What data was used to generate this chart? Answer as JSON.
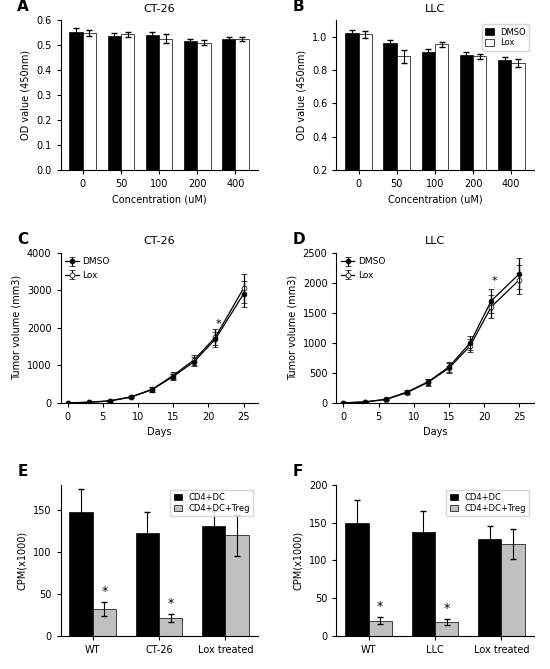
{
  "panel_A": {
    "title": "CT-26",
    "xlabel": "Concentration (uM)",
    "ylabel": "OD value (450nm)",
    "concentrations": [
      0,
      50,
      100,
      200,
      400
    ],
    "dmso_values": [
      0.554,
      0.538,
      0.54,
      0.515,
      0.523
    ],
    "lox_values": [
      0.55,
      0.543,
      0.526,
      0.51,
      0.524
    ],
    "dmso_err": [
      0.015,
      0.01,
      0.012,
      0.008,
      0.01
    ],
    "lox_err": [
      0.012,
      0.01,
      0.018,
      0.01,
      0.008
    ],
    "ylim": [
      0.0,
      0.6
    ],
    "yticks": [
      0.0,
      0.1,
      0.2,
      0.3,
      0.4,
      0.5,
      0.6
    ]
  },
  "panel_B": {
    "title": "LLC",
    "xlabel": "Concentration (uM)",
    "ylabel": "OD value (450nm)",
    "concentrations": [
      0,
      50,
      100,
      200,
      400
    ],
    "dmso_values": [
      1.02,
      0.965,
      0.91,
      0.888,
      0.858
    ],
    "lox_values": [
      1.015,
      0.882,
      0.955,
      0.882,
      0.842
    ],
    "dmso_err": [
      0.02,
      0.018,
      0.015,
      0.018,
      0.02
    ],
    "lox_err": [
      0.02,
      0.04,
      0.015,
      0.015,
      0.025
    ],
    "ylim": [
      0.2,
      1.1
    ],
    "yticks": [
      0.2,
      0.4,
      0.6,
      0.8,
      1.0
    ]
  },
  "panel_C": {
    "title": "CT-26",
    "xlabel": "Days",
    "ylabel": "Tumor volume (mm3)",
    "days": [
      0,
      3,
      6,
      9,
      12,
      15,
      18,
      21,
      25
    ],
    "dmso_values": [
      0,
      15,
      50,
      150,
      350,
      700,
      1100,
      1700,
      2900
    ],
    "lox_values": [
      0,
      15,
      55,
      160,
      360,
      730,
      1150,
      1750,
      3050
    ],
    "dmso_err": [
      0,
      5,
      15,
      30,
      60,
      80,
      120,
      200,
      350
    ],
    "lox_err": [
      0,
      5,
      15,
      30,
      60,
      90,
      130,
      220,
      380
    ],
    "ylim": [
      0,
      4000
    ],
    "yticks": [
      0,
      1000,
      2000,
      3000,
      4000
    ],
    "asterisk_day_idx": 7
  },
  "panel_D": {
    "title": "LLC",
    "xlabel": "Days",
    "ylabel": "Tumor volume (mm3)",
    "days": [
      0,
      3,
      6,
      9,
      12,
      15,
      18,
      21,
      25
    ],
    "dmso_values": [
      0,
      15,
      60,
      180,
      350,
      600,
      1000,
      1700,
      2150
    ],
    "lox_values": [
      0,
      15,
      55,
      170,
      340,
      580,
      950,
      1600,
      2050
    ],
    "dmso_err": [
      0,
      5,
      15,
      30,
      55,
      80,
      120,
      200,
      260
    ],
    "lox_err": [
      0,
      5,
      15,
      30,
      55,
      80,
      110,
      190,
      240
    ],
    "ylim": [
      0,
      2500
    ],
    "yticks": [
      0,
      500,
      1000,
      1500,
      2000,
      2500
    ],
    "asterisk_day_idx": 7
  },
  "panel_E": {
    "xlabel_groups": [
      "WT",
      "CT-26",
      "Lox treated"
    ],
    "cd4dc_values": [
      148,
      123,
      131
    ],
    "cd4dctreg_values": [
      32,
      21,
      120
    ],
    "cd4dc_err": [
      28,
      25,
      18
    ],
    "cd4dctreg_err": [
      8,
      5,
      25
    ],
    "ylabel": "CPM(x1000)",
    "ylim": [
      0,
      180
    ],
    "yticks": [
      0,
      50,
      100,
      150
    ],
    "asterisk_groups": [
      0,
      1
    ]
  },
  "panel_F": {
    "xlabel_groups": [
      "WT",
      "LLC",
      "Lox treated"
    ],
    "cd4dc_values": [
      150,
      138,
      128
    ],
    "cd4dctreg_values": [
      20,
      18,
      122
    ],
    "cd4dc_err": [
      30,
      28,
      18
    ],
    "cd4dctreg_err": [
      5,
      4,
      20
    ],
    "ylabel": "CPM(x1000)",
    "ylim": [
      0,
      200
    ],
    "yticks": [
      0,
      50,
      100,
      150,
      200
    ],
    "asterisk_groups": [
      0,
      1
    ]
  },
  "colors": {
    "dmso_bar": "#000000",
    "lox_bar": "#ffffff",
    "cd4dc_bar": "#000000",
    "cd4dctreg_bar": "#c0c0c0"
  }
}
